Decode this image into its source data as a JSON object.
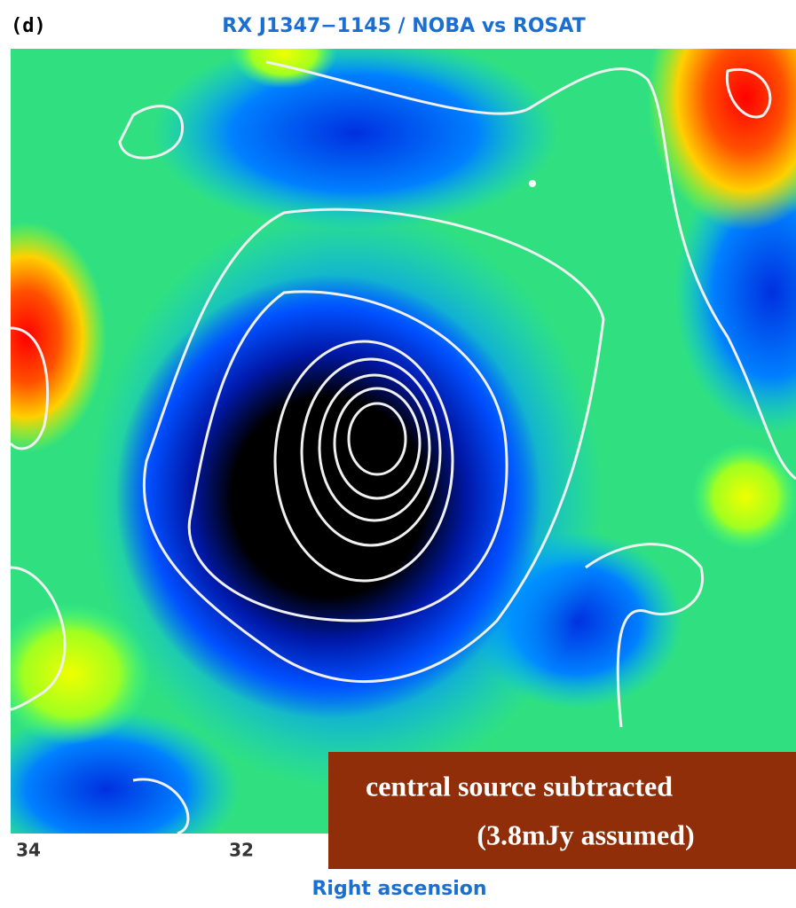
{
  "figure": {
    "panel_label": "(d)",
    "title": "RX J1347−1145 / NOBA vs ROSAT",
    "x_tick_labels": [
      "34",
      "32"
    ],
    "x_axis_label": "Right ascension",
    "annotation": {
      "lines": [
        "central source subtracted",
        "(3.8mJy assumed)"
      ]
    }
  }
}
